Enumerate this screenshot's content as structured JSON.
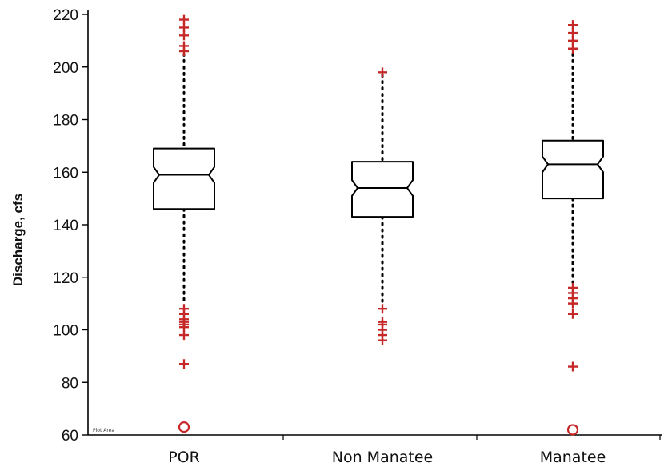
{
  "chart_data": {
    "type": "box",
    "title": "",
    "xlabel": "",
    "ylabel": "Discharge, cfs",
    "ylim": [
      60,
      220
    ],
    "yticks": [
      60,
      80,
      100,
      120,
      140,
      160,
      180,
      200,
      220
    ],
    "categories": [
      "POR",
      "Non Manatee",
      "Manatee"
    ],
    "boxes": [
      {
        "category": "POR",
        "whisker_low": 110,
        "q1": 146,
        "median": 159,
        "q3": 169,
        "whisker_high": 205,
        "notch_low": 156,
        "notch_high": 162,
        "outliers_plus": [
          218,
          215,
          212,
          208,
          206,
          108,
          106,
          104,
          103,
          102,
          101,
          98,
          87
        ],
        "outliers_circle": [
          63
        ]
      },
      {
        "category": "Non Manatee",
        "whisker_low": 110,
        "q1": 143,
        "median": 154,
        "q3": 164,
        "whisker_high": 197,
        "notch_low": 151,
        "notch_high": 157,
        "outliers_plus": [
          198,
          108,
          103,
          102,
          100,
          98,
          96
        ],
        "outliers_circle": []
      },
      {
        "category": "Manatee",
        "whisker_low": 118,
        "q1": 150,
        "median": 163,
        "q3": 172,
        "whisker_high": 205,
        "notch_low": 160,
        "notch_high": 166,
        "outliers_plus": [
          216,
          213,
          210,
          207,
          116,
          114,
          112,
          110,
          106,
          86
        ],
        "outliers_circle": [
          62
        ]
      }
    ],
    "colors": {
      "box": "#000000",
      "whisker": "#000000",
      "outlier": "#c62828"
    },
    "grid": false,
    "legend": "none",
    "plot_area_tag": "Plot Area"
  }
}
